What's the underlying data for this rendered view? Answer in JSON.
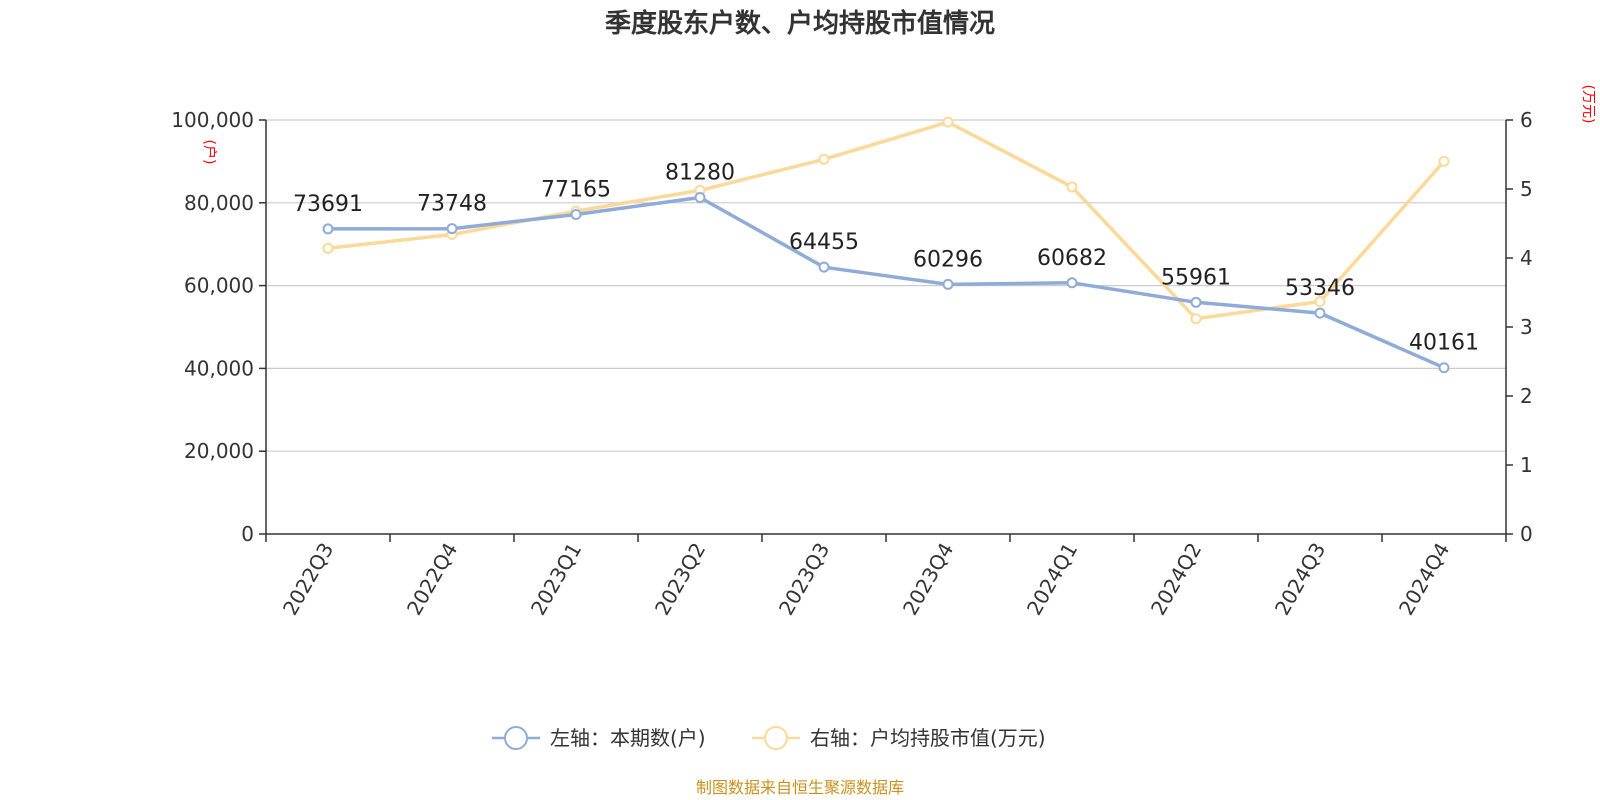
{
  "chart_data": {
    "type": "line",
    "title": "季度股东户数、户均持股市值情况",
    "categories": [
      "2022Q3",
      "2022Q4",
      "2023Q1",
      "2023Q2",
      "2023Q3",
      "2023Q4",
      "2024Q1",
      "2024Q2",
      "2024Q3",
      "2024Q4"
    ],
    "left_axis": {
      "unit": "(户)",
      "ylim": [
        0,
        100000
      ],
      "ticks": [
        "0",
        "20,000",
        "40,000",
        "60,000",
        "80,000",
        "100,000"
      ]
    },
    "right_axis": {
      "unit": "(万元)",
      "ylim": [
        0,
        6
      ],
      "ticks": [
        "0",
        "1",
        "2",
        "3",
        "4",
        "5",
        "6"
      ]
    },
    "series": [
      {
        "name": "左轴：本期数(户)",
        "axis": "left",
        "color": "#8fabd8",
        "values": [
          73691,
          73748,
          77165,
          81280,
          64455,
          60296,
          60682,
          55961,
          53346,
          40161
        ],
        "labels": [
          "73691",
          "73748",
          "77165",
          "81280",
          "64455",
          "60296",
          "60682",
          "55961",
          "53346",
          "40161"
        ]
      },
      {
        "name": "右轴：户均持股市值(万元)",
        "axis": "right",
        "color": "#fdd999",
        "values": [
          4.14,
          4.34,
          4.68,
          4.98,
          5.43,
          5.97,
          5.03,
          3.12,
          3.37,
          5.4
        ]
      }
    ],
    "grid": true,
    "legend_position": "bottom-center",
    "source": "制图数据来自恒生聚源数据库"
  }
}
